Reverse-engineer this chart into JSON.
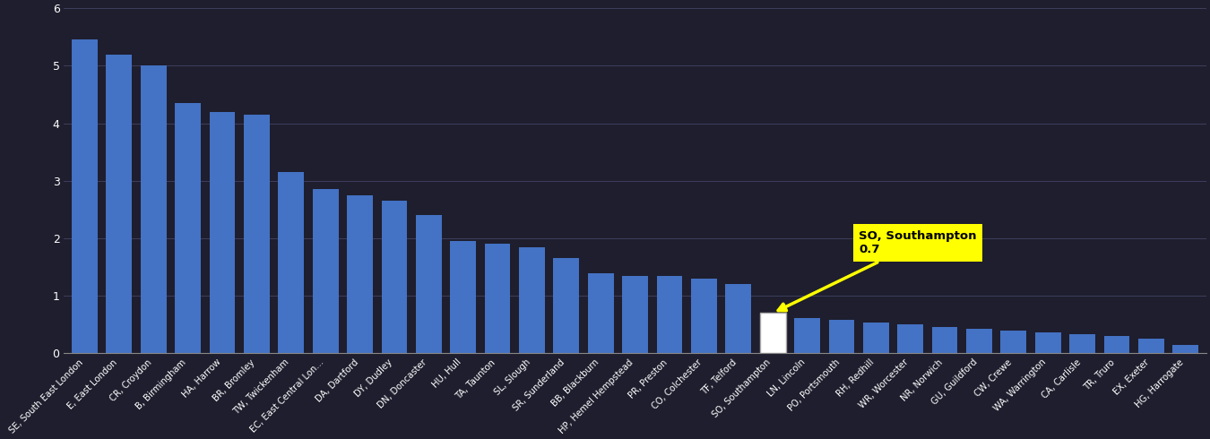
{
  "categories": [
    "SE, South East London",
    "E, East London",
    "CR, Croydon",
    "B, Birmingham",
    "HA, Harrow",
    "BR, Bromley",
    "TW, Twickenham",
    "EC, East Central Lon...",
    "DA, Dartford",
    "DY, Dudley",
    "DN, Doncaster",
    "HU, Hull",
    "TA, Taunton",
    "SL, Slough",
    "SR, Sunderland",
    "BB, Blackburn",
    "HP, Hemel Hempstead",
    "PR, Preston",
    "CO, Colchester",
    "TF, Telford",
    "SO, Southampton",
    "LN, Lincoln",
    "PO, Portsmouth",
    "RH, Redhill",
    "WR, Worcester",
    "NR, Norwich",
    "GU, Guildford",
    "CW, Crewe",
    "WA, Warrington",
    "CA, Carlisle",
    "TR, Truro",
    "EX, Exeter",
    "HG, Harrogate"
  ],
  "values": [
    5.45,
    5.2,
    5.0,
    4.35,
    4.2,
    4.15,
    3.15,
    2.85,
    2.75,
    2.65,
    2.4,
    1.95,
    1.9,
    1.85,
    1.65,
    1.4,
    1.35,
    1.35,
    1.3,
    1.2,
    0.7,
    0.62,
    0.58,
    0.54,
    0.5,
    0.46,
    0.43,
    0.4,
    0.37,
    0.34,
    0.31,
    0.25,
    0.15
  ],
  "highlight_index": 20,
  "highlight_label": "SO, Southampton\n0.7",
  "bar_color": "#4472C4",
  "highlight_bar_color": "#ffffff",
  "annotation_bg": "#ffff00",
  "background_color": "#1e1e2e",
  "grid_color": "#444466",
  "text_color": "#ffffff",
  "ylim": [
    0,
    6
  ],
  "yticks": [
    0,
    1,
    2,
    3,
    4,
    5,
    6
  ]
}
